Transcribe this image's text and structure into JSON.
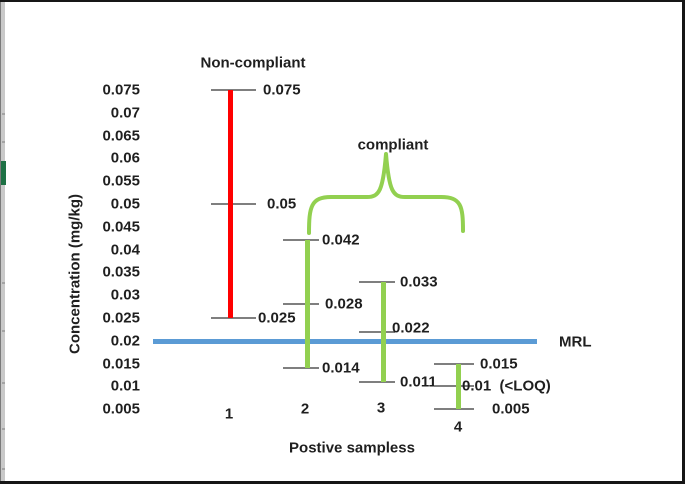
{
  "figure": {
    "background": "#ffffff",
    "border_color": "#161616"
  },
  "window_edge": {
    "strip_color": "#c9c9c9",
    "accent_color": "#1e7145"
  },
  "chart_data": {
    "type": "high-low-range-lines",
    "title": "",
    "text_color": "#1f1f1f",
    "tick_color": "#7f7f7f",
    "grid": "off",
    "legend": "none",
    "x_axis": {
      "title": "Postive sampless",
      "categories": [
        "1",
        "2",
        "3",
        "4"
      ]
    },
    "y_axis": {
      "title": "Concentration (mg/kg)",
      "min": 0.005,
      "max": 0.075,
      "step": 0.005,
      "tick_labels": [
        "0.075",
        "0.07",
        "0.065",
        "0.06",
        "0.055",
        "0.05",
        "0.045",
        "0.04",
        "0.035",
        "0.03",
        "0.025",
        "0.02",
        "0.015",
        "0.01",
        "0.005"
      ]
    },
    "series": [
      {
        "category": "1",
        "compliance": "non-compliant",
        "color": "#ff0000",
        "points": [
          {
            "value": 0.075,
            "label": "0.075"
          },
          {
            "value": 0.05,
            "label": "0.05"
          },
          {
            "value": 0.025,
            "label": "0.025"
          }
        ]
      },
      {
        "category": "2",
        "compliance": "compliant",
        "color": "#92d050",
        "points": [
          {
            "value": 0.042,
            "label": "0.042"
          },
          {
            "value": 0.028,
            "label": "0.028"
          },
          {
            "value": 0.014,
            "label": "0.014"
          }
        ]
      },
      {
        "category": "3",
        "compliance": "compliant",
        "color": "#92d050",
        "points": [
          {
            "value": 0.033,
            "label": "0.033"
          },
          {
            "value": 0.022,
            "label": "0.022"
          },
          {
            "value": 0.011,
            "label": "0.011"
          }
        ]
      },
      {
        "category": "4",
        "compliance": "compliant",
        "color": "#92d050",
        "points": [
          {
            "value": 0.015,
            "label": "0.015"
          },
          {
            "value": 0.01,
            "label": "0.01  (<LOQ)"
          },
          {
            "value": 0.005,
            "label": "0.005"
          }
        ]
      }
    ],
    "reference_line": {
      "value": 0.02,
      "label": "MRL",
      "color": "#5b9bd5"
    },
    "annotations": [
      {
        "id": "non-compliant",
        "text": "Non-compliant",
        "applies_to": [
          "1"
        ]
      },
      {
        "id": "compliant",
        "text": "compliant",
        "applies_to": [
          "2",
          "3",
          "4"
        ],
        "brace_color": "#92d050"
      }
    ]
  }
}
